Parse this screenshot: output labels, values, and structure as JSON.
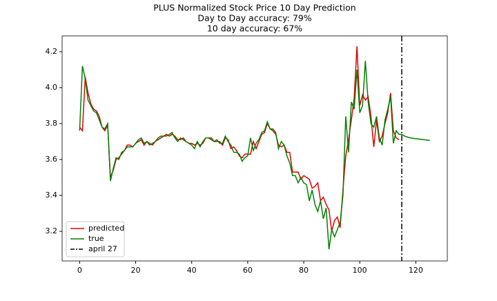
{
  "chart_data": {
    "type": "line",
    "title": [
      "PLUS Normalized Stock Price 10 Day Prediction",
      "Day to Day accuracy: 79%",
      "10 day accuracy: 67%"
    ],
    "x": [
      0,
      1,
      2,
      3,
      4,
      5,
      6,
      7,
      8,
      9,
      10,
      11,
      12,
      13,
      14,
      15,
      16,
      17,
      18,
      19,
      20,
      21,
      22,
      23,
      24,
      25,
      26,
      27,
      28,
      29,
      30,
      31,
      32,
      33,
      34,
      35,
      36,
      37,
      38,
      39,
      40,
      41,
      42,
      43,
      44,
      45,
      46,
      47,
      48,
      49,
      50,
      51,
      52,
      53,
      54,
      55,
      56,
      57,
      58,
      59,
      60,
      61,
      62,
      63,
      64,
      65,
      66,
      67,
      68,
      69,
      70,
      71,
      72,
      73,
      74,
      75,
      76,
      77,
      78,
      79,
      80,
      81,
      82,
      83,
      84,
      85,
      86,
      87,
      88,
      89,
      90,
      91,
      92,
      93,
      94,
      95,
      96,
      97,
      98,
      99,
      100,
      101,
      102,
      103,
      104,
      105,
      106,
      107,
      108,
      109,
      110,
      111,
      112,
      113,
      114,
      115,
      116,
      117,
      118,
      119,
      120,
      121,
      122,
      123,
      124,
      125
    ],
    "series": [
      {
        "name": "predicted",
        "color": "#e00000",
        "values": [
          3.78,
          3.76,
          4.06,
          3.97,
          3.91,
          3.88,
          3.87,
          3.84,
          3.78,
          3.76,
          3.79,
          3.5,
          3.54,
          3.6,
          3.61,
          3.63,
          3.65,
          3.68,
          3.68,
          3.67,
          3.69,
          3.7,
          3.71,
          3.68,
          3.7,
          3.69,
          3.68,
          3.7,
          3.71,
          3.72,
          3.73,
          3.74,
          3.73,
          3.74,
          3.73,
          3.71,
          3.71,
          3.72,
          3.7,
          3.69,
          3.69,
          3.68,
          3.69,
          3.68,
          3.69,
          3.72,
          3.72,
          3.72,
          3.7,
          3.7,
          3.7,
          3.68,
          3.72,
          3.71,
          3.66,
          3.67,
          3.65,
          3.62,
          3.61,
          3.63,
          3.63,
          3.63,
          3.7,
          3.66,
          3.7,
          3.74,
          3.75,
          3.8,
          3.77,
          3.76,
          3.74,
          3.68,
          3.67,
          3.68,
          3.64,
          3.64,
          3.53,
          3.53,
          3.53,
          3.49,
          3.51,
          3.5,
          3.49,
          3.44,
          3.45,
          3.47,
          3.37,
          3.39,
          3.35,
          3.32,
          3.2,
          3.26,
          3.28,
          3.22,
          3.43,
          3.62,
          3.71,
          3.82,
          3.94,
          4.23,
          3.9,
          3.96,
          3.93,
          3.95,
          3.84,
          3.67,
          3.82,
          3.7,
          3.73,
          3.8,
          3.86,
          3.97,
          3.76,
          3.72,
          3.71,
          null,
          null,
          null,
          null,
          null,
          null,
          null,
          null,
          null,
          null,
          null
        ]
      },
      {
        "name": "true",
        "color": "#008000",
        "values": [
          3.76,
          4.12,
          4.05,
          3.93,
          3.9,
          3.87,
          3.86,
          3.82,
          3.78,
          3.77,
          3.8,
          3.48,
          3.55,
          3.61,
          3.6,
          3.64,
          3.65,
          3.67,
          3.67,
          3.67,
          3.69,
          3.71,
          3.72,
          3.69,
          3.7,
          3.68,
          3.69,
          3.7,
          3.72,
          3.73,
          3.73,
          3.73,
          3.74,
          3.75,
          3.72,
          3.7,
          3.72,
          3.71,
          3.7,
          3.69,
          3.68,
          3.66,
          3.7,
          3.67,
          3.7,
          3.72,
          3.72,
          3.71,
          3.7,
          3.71,
          3.69,
          3.69,
          3.73,
          3.7,
          3.68,
          3.64,
          3.64,
          3.63,
          3.59,
          3.61,
          3.62,
          3.72,
          3.65,
          3.69,
          3.71,
          3.75,
          3.76,
          3.81,
          3.77,
          3.77,
          3.75,
          3.66,
          3.7,
          3.68,
          3.62,
          3.58,
          3.51,
          3.51,
          3.47,
          3.5,
          3.47,
          3.46,
          3.37,
          3.43,
          3.35,
          3.31,
          3.37,
          3.27,
          3.33,
          3.1,
          3.21,
          3.17,
          3.21,
          3.25,
          3.4,
          3.84,
          3.64,
          3.92,
          3.88,
          4.1,
          3.86,
          3.9,
          4.15,
          3.92,
          3.8,
          3.78,
          3.84,
          3.72,
          3.68,
          3.82,
          3.88,
          3.95,
          3.69,
          3.76,
          3.74,
          3.74,
          3.73,
          3.725,
          3.72,
          3.718,
          3.716,
          3.714,
          3.712,
          3.71,
          3.708,
          3.706
        ]
      }
    ],
    "vlines": [
      {
        "x": 115,
        "name": "april 27",
        "color": "#000000"
      }
    ],
    "xlim": [
      -6.25,
      131.25
    ],
    "ylim": [
      3.035,
      4.288
    ],
    "xticks": [
      0,
      20,
      40,
      60,
      80,
      100,
      120
    ],
    "yticks": [
      3.2,
      3.4,
      3.6,
      3.8,
      {
        "value": 4,
        "label": "4.0"
      },
      4.2
    ],
    "legend": "lower left",
    "grid": false
  }
}
